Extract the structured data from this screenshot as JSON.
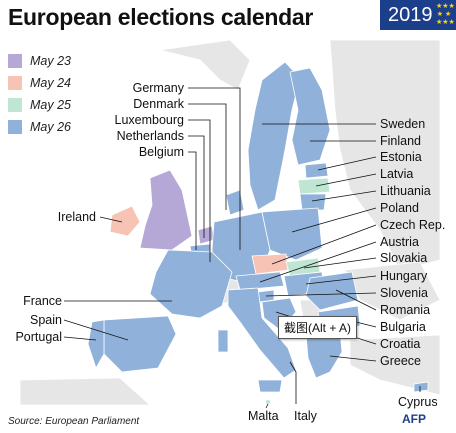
{
  "title": "European elections calendar",
  "year_badge": "2019",
  "colors": {
    "may23": "#b6a8d6",
    "may24": "#f7c3b5",
    "may25": "#bfe6d3",
    "may26": "#8fb1da",
    "non_eu": "#e6e6e6",
    "sea": "#ffffff",
    "badge": "#1c3f8c"
  },
  "legend": [
    {
      "label": "May 23",
      "color": "#b6a8d6"
    },
    {
      "label": "May 24",
      "color": "#f7c3b5"
    },
    {
      "label": "May 25",
      "color": "#bfe6d3"
    },
    {
      "label": "May 26",
      "color": "#8fb1da"
    }
  ],
  "countries": [
    {
      "name": "Germany",
      "date": "May 26"
    },
    {
      "name": "Denmark",
      "date": "May 26"
    },
    {
      "name": "Luxembourg",
      "date": "May 26"
    },
    {
      "name": "Netherlands",
      "date": "May 23"
    },
    {
      "name": "Belgium",
      "date": "May 26"
    },
    {
      "name": "Ireland",
      "date": "May 24"
    },
    {
      "name": "France",
      "date": "May 26"
    },
    {
      "name": "Spain",
      "date": "May 26"
    },
    {
      "name": "Portugal",
      "date": "May 26"
    },
    {
      "name": "Sweden",
      "date": "May 26"
    },
    {
      "name": "Finland",
      "date": "May 26"
    },
    {
      "name": "Estonia",
      "date": "May 26"
    },
    {
      "name": "Latvia",
      "date": "May 25"
    },
    {
      "name": "Lithuania",
      "date": "May 26"
    },
    {
      "name": "Poland",
      "date": "May 26"
    },
    {
      "name": "Czech Rep.",
      "date": "May 24"
    },
    {
      "name": "Austria",
      "date": "May 26"
    },
    {
      "name": "Slovakia",
      "date": "May 25"
    },
    {
      "name": "Hungary",
      "date": "May 26"
    },
    {
      "name": "Slovenia",
      "date": "May 26"
    },
    {
      "name": "Romania",
      "date": "May 26"
    },
    {
      "name": "Bulgaria",
      "date": "May 26"
    },
    {
      "name": "Croatia",
      "date": "May 26"
    },
    {
      "name": "Greece",
      "date": "May 26"
    },
    {
      "name": "Cyprus",
      "date": "May 26"
    },
    {
      "name": "Malta",
      "date": "May 25"
    },
    {
      "name": "Italy",
      "date": "May 26"
    }
  ],
  "tooltip": "截图(Alt + A)",
  "source": "Source: European Parliament",
  "credit": "AFP"
}
